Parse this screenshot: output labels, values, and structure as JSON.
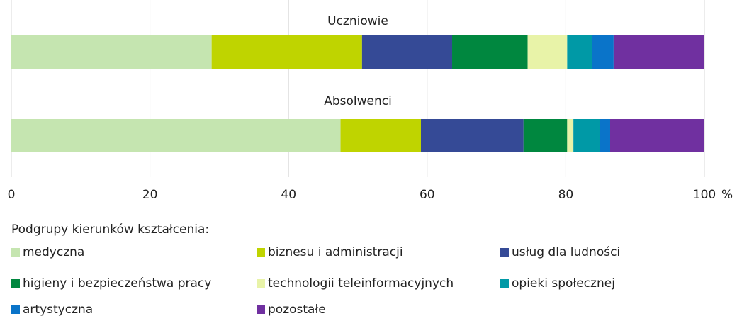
{
  "chart_data": {
    "type": "stacked_barh",
    "categories": [
      "Uczniowie",
      "Absolwenci"
    ],
    "series": [
      {
        "name": "medyczna",
        "color": "#c5e5b0",
        "values": [
          28.9,
          47.5
        ]
      },
      {
        "name": "biznesu i administracji",
        "color": "#bfd400",
        "values": [
          21.7,
          11.6
        ]
      },
      {
        "name": "usług dla ludności",
        "color": "#354a96",
        "values": [
          13.0,
          14.8
        ]
      },
      {
        "name": "higieny i bezpieczeństwa pracy",
        "color": "#00873f",
        "values": [
          10.9,
          6.3
        ]
      },
      {
        "name": "technologii teleinformacyjnych",
        "color": "#e8f3a8",
        "values": [
          5.7,
          0.9
        ]
      },
      {
        "name": "opieki społecznej",
        "color": "#0099a6",
        "values": [
          3.6,
          3.8
        ]
      },
      {
        "name": "artystyczna",
        "color": "#0a74c9",
        "values": [
          3.1,
          1.5
        ]
      },
      {
        "name": "pozostałe",
        "color": "#7030a0",
        "values": [
          13.1,
          13.6
        ]
      }
    ],
    "xlim": [
      0,
      100
    ],
    "xticks": [
      0,
      20,
      40,
      60,
      80,
      100
    ],
    "x_unit": "%",
    "grid": true,
    "legend_title": "Podgrupy kierunków kształcenia:"
  }
}
